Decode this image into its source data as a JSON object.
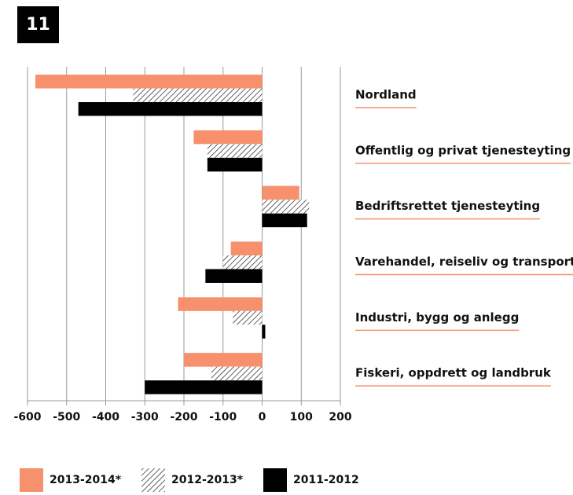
{
  "chart_data": {
    "type": "hbar",
    "title": "11",
    "categories": [
      "Nordland",
      "Offentlig og privat tjenesteyting",
      "Bedriftsrettet tjenesteyting",
      "Varehandel, reiseliv og transport",
      "Industri, bygg og anlegg",
      "Fiskeri, oppdrett og landbruk"
    ],
    "series": [
      {
        "name": "2013-2014*",
        "color": "#f7906c",
        "hatch": false,
        "values": [
          -580,
          -175,
          95,
          -80,
          -215,
          -200
        ]
      },
      {
        "name": "2012-2013*",
        "color": "#222222",
        "hatch": true,
        "values": [
          -330,
          -140,
          120,
          -100,
          -75,
          -130
        ]
      },
      {
        "name": "2011-2012",
        "color": "#000000",
        "hatch": false,
        "values": [
          -470,
          -140,
          115,
          -145,
          8,
          -300
        ]
      }
    ],
    "xlim": [
      -600,
      200
    ],
    "xticks": [
      -600,
      -500,
      -400,
      -300,
      -200,
      -100,
      0,
      100,
      200
    ],
    "grid": true
  }
}
